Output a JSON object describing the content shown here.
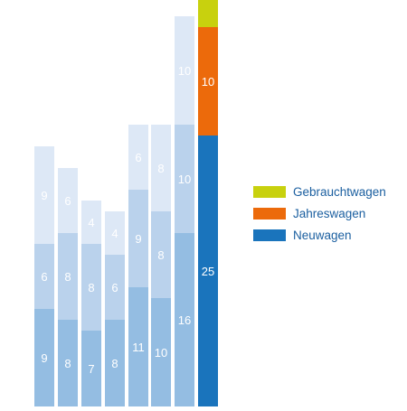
{
  "chart_data": {
    "type": "bar",
    "stacked": true,
    "categories": [
      "",
      "",
      "",
      "",
      "",
      "",
      "",
      ""
    ],
    "series": [
      {
        "name": "Neuwagen",
        "values": [
          9,
          8,
          7,
          8,
          11,
          10,
          16,
          25
        ],
        "colors": [
          "#94bde2",
          "#94bde2",
          "#94bde2",
          "#94bde2",
          "#94bde2",
          "#94bde2",
          "#94bde2",
          "#1a74bc"
        ]
      },
      {
        "name": "Jahreswagen",
        "values": [
          6,
          8,
          8,
          6,
          9,
          8,
          10,
          10
        ],
        "colors": [
          "#bad2ec",
          "#bad2ec",
          "#bad2ec",
          "#bad2ec",
          "#bad2ec",
          "#bad2ec",
          "#bad2ec",
          "#ec6a0b"
        ]
      },
      {
        "name": "Gebrauchtwagen",
        "values": [
          9,
          6,
          4,
          4,
          6,
          8,
          10,
          2.5
        ],
        "labels": [
          "9",
          "6",
          "4",
          "4",
          "6",
          "8",
          "10",
          ""
        ],
        "colors": [
          "#dde8f6",
          "#dde8f6",
          "#dde8f6",
          "#dde8f6",
          "#dde8f6",
          "#dde8f6",
          "#dde8f6",
          "#c8d10e"
        ]
      }
    ],
    "ylim": [
      0,
      37.5
    ],
    "grid": false,
    "legend_position": "right",
    "legend": [
      {
        "name": "Gebrauchtwagen",
        "color": "#c8d10e"
      },
      {
        "name": "Jahreswagen",
        "color": "#ec6a0b"
      },
      {
        "name": "Neuwagen",
        "color": "#1a74bc"
      }
    ]
  }
}
